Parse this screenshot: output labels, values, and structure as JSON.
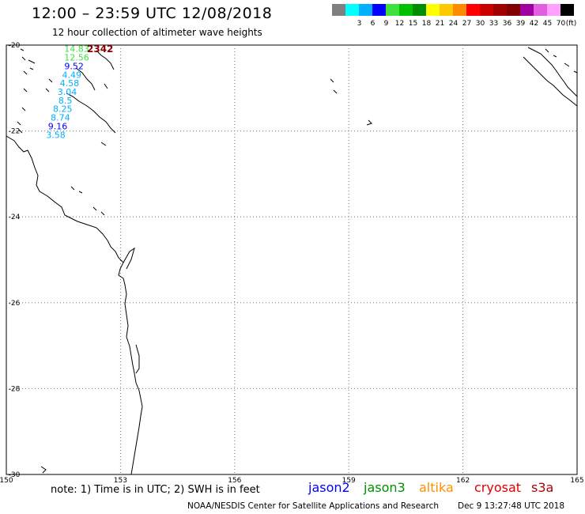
{
  "header": {
    "title": "12:00 – 23:59 UTC 12/08/2018",
    "subtitle": "12 hour collection of altimeter wave heights"
  },
  "scale": {
    "unit": "(ft)",
    "bins": [
      {
        "label": "",
        "color": "#808080"
      },
      {
        "label": "3",
        "color": "#00ffff"
      },
      {
        "label": "6",
        "color": "#00b0ff"
      },
      {
        "label": "9",
        "color": "#0000ff"
      },
      {
        "label": "12",
        "color": "#40e040"
      },
      {
        "label": "15",
        "color": "#00c000"
      },
      {
        "label": "18",
        "color": "#008c00"
      },
      {
        "label": "21",
        "color": "#ffff00"
      },
      {
        "label": "24",
        "color": "#ffc800"
      },
      {
        "label": "27",
        "color": "#ff8c00"
      },
      {
        "label": "30",
        "color": "#ff0000"
      },
      {
        "label": "33",
        "color": "#c80000"
      },
      {
        "label": "36",
        "color": "#a00000"
      },
      {
        "label": "39",
        "color": "#800000"
      },
      {
        "label": "42",
        "color": "#a000a0"
      },
      {
        "label": "45",
        "color": "#e060e0"
      },
      {
        "label": "70",
        "color": "#ffa0ff"
      },
      {
        "label": "",
        "color": "#000000"
      }
    ]
  },
  "map": {
    "lon_range": [
      150,
      165
    ],
    "lat_range": [
      -30,
      -20
    ],
    "lon_ticks": [
      "150",
      "153",
      "156",
      "159",
      "162",
      "165"
    ],
    "lat_ticks": [
      "-20",
      "-22",
      "-24",
      "-26",
      "-28",
      "-30"
    ],
    "track_time": "2342",
    "track_time_color": "#8b0000",
    "observations": [
      {
        "lon": 151.85,
        "lat": -20.05,
        "swh": "14.83",
        "color": "#40e040"
      },
      {
        "lon": 151.85,
        "lat": -20.25,
        "swh": "12.56",
        "color": "#40e040"
      },
      {
        "lon": 151.78,
        "lat": -20.45,
        "swh": "9.52",
        "color": "#0000ff"
      },
      {
        "lon": 151.72,
        "lat": -20.65,
        "swh": "4.49",
        "color": "#00b0ff"
      },
      {
        "lon": 151.66,
        "lat": -20.85,
        "swh": "4.58",
        "color": "#00b0ff"
      },
      {
        "lon": 151.6,
        "lat": -21.05,
        "swh": "3.04",
        "color": "#00b0ff"
      },
      {
        "lon": 151.55,
        "lat": -21.25,
        "swh": "8.5",
        "color": "#00b0ff"
      },
      {
        "lon": 151.48,
        "lat": -21.45,
        "swh": "8.25",
        "color": "#00b0ff"
      },
      {
        "lon": 151.42,
        "lat": -21.65,
        "swh": "8.74",
        "color": "#00b0ff"
      },
      {
        "lon": 151.35,
        "lat": -21.85,
        "swh": "9.16",
        "color": "#0000ff"
      },
      {
        "lon": 151.3,
        "lat": -22.05,
        "swh": "3.58",
        "color": "#00b0ff"
      }
    ]
  },
  "footer": {
    "note": "note:  1) Time is in UTC;  2) SWH is in feet",
    "satellites": [
      {
        "name": "jason2",
        "color": "#0000ff"
      },
      {
        "name": "jason3",
        "color": "#009000"
      },
      {
        "name": "altika",
        "color": "#ff9000"
      },
      {
        "name": "cryosat",
        "color": "#e00000"
      },
      {
        "name": "s3a",
        "color": "#b00000"
      }
    ],
    "credit": "NOAA/NESDIS Center for Satellite Applications and Research",
    "timestamp": "Dec  9 13:27:48 UTC 2018"
  }
}
